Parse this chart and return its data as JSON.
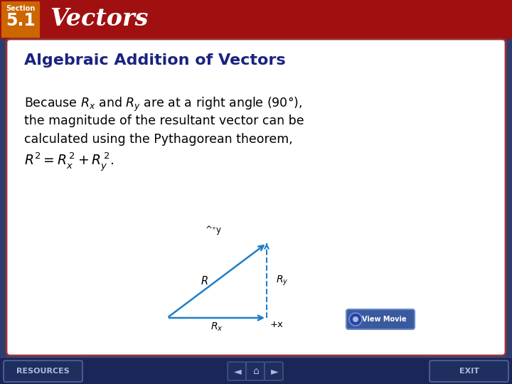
{
  "header_bg_color": "#A01010",
  "header_section_box_color": "#CC6600",
  "section_label": "Section",
  "section_number": "5.1",
  "title": "Vectors",
  "slide_bg_color": "#2E3B6E",
  "card_bg_color": "#FFFFFF",
  "card_border_color": "#993333",
  "card_title": "Algebraic Addition of Vectors",
  "card_title_color": "#1A237E",
  "footer_bg_color": "#1A2558",
  "footer_resources": "RESOURCES",
  "footer_exit": "EXIT",
  "diagram_arrow_color": "#1E7EC8",
  "view_movie_color": "#3A5A9E",
  "view_movie_text": "View Movie"
}
